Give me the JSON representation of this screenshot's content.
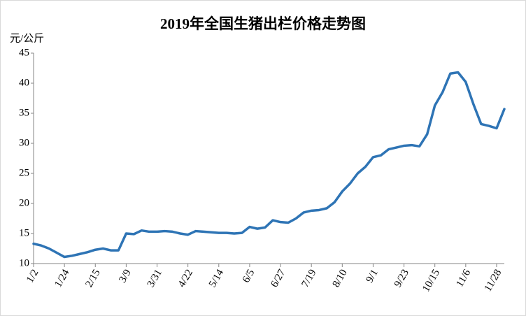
{
  "chart_data": {
    "type": "line",
    "title": "2019年全国生猪出栏价格走势图",
    "y_label": "元/公斤",
    "categories": [
      "1/2",
      null,
      null,
      null,
      "1/24",
      null,
      null,
      null,
      "2/15",
      null,
      null,
      null,
      "3/9",
      null,
      null,
      null,
      "3/31",
      null,
      null,
      null,
      "4/22",
      null,
      null,
      null,
      "5/14",
      null,
      null,
      null,
      "6/5",
      null,
      null,
      null,
      "6/27",
      null,
      null,
      null,
      "7/19",
      null,
      null,
      null,
      "8/10",
      null,
      null,
      null,
      "9/1",
      null,
      null,
      null,
      "9/23",
      null,
      null,
      null,
      "10/15",
      null,
      null,
      null,
      "11/6",
      null,
      null,
      null,
      "11/28",
      null
    ],
    "values": [
      13.3,
      13.0,
      12.5,
      11.8,
      11.1,
      11.3,
      11.6,
      11.9,
      12.3,
      12.5,
      12.2,
      12.2,
      15.0,
      14.9,
      15.5,
      15.3,
      15.3,
      15.4,
      15.3,
      15.0,
      14.8,
      15.4,
      15.3,
      15.2,
      15.1,
      15.1,
      15.0,
      15.1,
      16.1,
      15.8,
      16.0,
      17.2,
      16.9,
      16.8,
      17.5,
      18.5,
      18.8,
      18.9,
      19.2,
      20.2,
      22.0,
      23.3,
      25.0,
      26.1,
      27.7,
      28.0,
      29.0,
      29.3,
      29.6,
      29.7,
      29.5,
      31.5,
      36.3,
      38.5,
      41.6,
      41.8,
      40.2,
      36.5,
      33.2,
      32.9,
      32.5,
      35.7
    ],
    "color": "#2e74b5",
    "ylim": [
      10,
      45
    ],
    "yticks": [
      10,
      15,
      20,
      25,
      30,
      35,
      40,
      45
    ],
    "grid": false
  }
}
